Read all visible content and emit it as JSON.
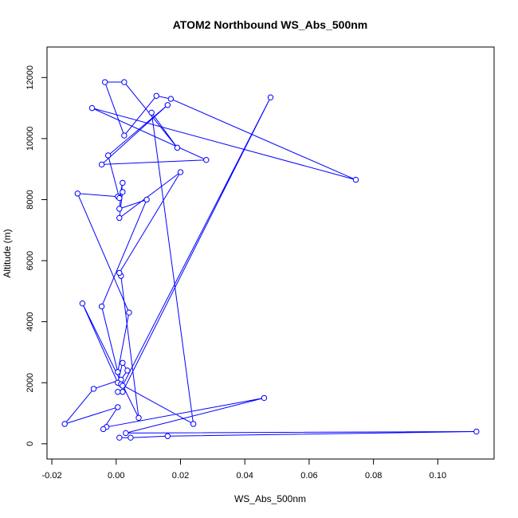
{
  "chart_data": {
    "type": "line",
    "title": "ATOM2 Northbound WS_Abs_500nm",
    "xlabel": "WS_Abs_500nm",
    "ylabel": "Altitude (m)",
    "xlim": [
      -0.0215,
      0.1175
    ],
    "ylim": [
      -500,
      13000
    ],
    "xticks": [
      -0.02,
      0.0,
      0.02,
      0.04,
      0.06,
      0.08,
      0.1
    ],
    "xtick_labels": [
      "-0.02",
      "0.00",
      "0.02",
      "0.04",
      "0.06",
      "0.08",
      "0.10"
    ],
    "yticks": [
      0,
      2000,
      4000,
      6000,
      8000,
      10000,
      12000
    ],
    "ytick_labels": [
      "0",
      "2000",
      "4000",
      "6000",
      "8000",
      "10000",
      "12000"
    ],
    "grid": false,
    "series": [
      {
        "color": "#0000ff",
        "marker": "open-circle",
        "x": [
          0.001,
          0.0045,
          0.016,
          0.112,
          0.003,
          0.046,
          -0.003,
          -0.004,
          0.0005,
          -0.016,
          -0.007,
          0.0015,
          0.0035,
          0.002,
          0.0005,
          -0.0105,
          0.007,
          0.0015,
          0.001,
          0.02,
          0.001,
          0.002,
          0.0005,
          -0.012,
          0.004,
          0.0005,
          -0.0045,
          0.0095,
          0.001,
          0.002,
          0.001,
          -0.0025,
          0.016,
          -0.0045,
          0.028,
          -0.0075,
          0.0745,
          0.017,
          0.0125,
          0.0025,
          -0.0035,
          0.0025,
          0.019,
          0.011,
          0.024,
          0.0015,
          0.002,
          0.048,
          0.002,
          0.0005
        ],
        "y": [
          200,
          200,
          250,
          400,
          350,
          1500,
          550,
          480,
          1200,
          650,
          1800,
          2100,
          2400,
          2650,
          2000,
          4600,
          850,
          5500,
          5600,
          8900,
          7400,
          8250,
          8100,
          8200,
          4300,
          2350,
          4500,
          8000,
          7700,
          8550,
          8050,
          9450,
          11100,
          9150,
          9300,
          11000,
          8650,
          11300,
          11400,
          10100,
          11850,
          11850,
          9700,
          10850,
          650,
          1950,
          1900,
          11350,
          1700,
          1700
        ]
      }
    ]
  }
}
